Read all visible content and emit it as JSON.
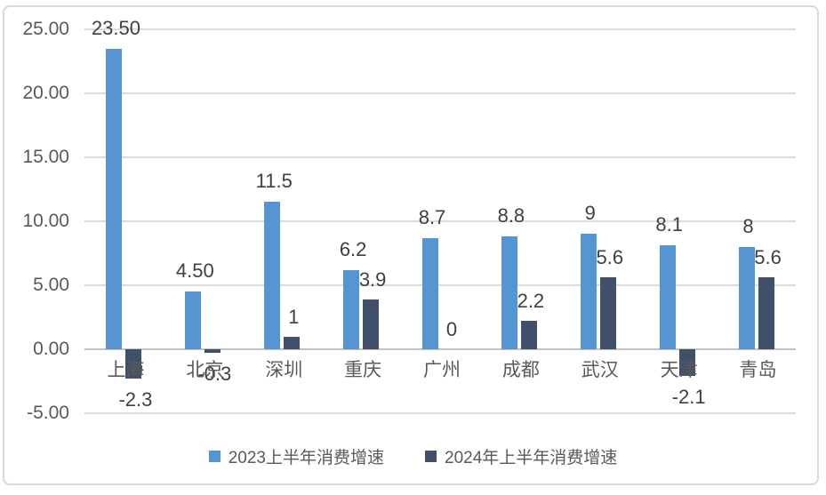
{
  "chart_data": {
    "type": "bar",
    "title": "",
    "categories": [
      "上海",
      "北京",
      "深圳",
      "重庆",
      "广州",
      "成都",
      "武汉",
      "天津",
      "青岛"
    ],
    "series": [
      {
        "name": "2023上半年消费增速",
        "color": "#5596d2",
        "values": [
          23.5,
          4.5,
          11.5,
          6.2,
          8.7,
          8.8,
          9,
          8.1,
          8
        ],
        "labels": [
          "23.50",
          "4.50",
          "11.5",
          "6.2",
          "8.7",
          "8.8",
          "9",
          "8.1",
          "8"
        ]
      },
      {
        "name": "2024年上半年消费增速",
        "color": "#40506a",
        "values": [
          -2.3,
          -0.3,
          1,
          3.9,
          0,
          2.2,
          5.6,
          -2.1,
          5.6
        ],
        "labels": [
          "-2.3",
          "-0.3",
          "1",
          "3.9",
          "0",
          "2.2",
          "5.6",
          "-2.1",
          "5.6"
        ]
      }
    ],
    "y_axis": {
      "min": -5,
      "max": 25,
      "tick_step": 5,
      "tick_values": [
        25,
        20,
        15,
        10,
        5,
        0,
        -5
      ],
      "tick_labels": [
        "25.00",
        "20.00",
        "15.00",
        "10.00",
        "5.00",
        "0.00",
        "-5.00"
      ]
    },
    "grid": true,
    "legend_position": "bottom",
    "colors": {
      "gridline": "#dcdcdc",
      "zero_line": "#c2c2c2",
      "data_label": "#3f3f3f",
      "axis_label": "#595959",
      "frame_border": "#d9d9d9"
    }
  }
}
